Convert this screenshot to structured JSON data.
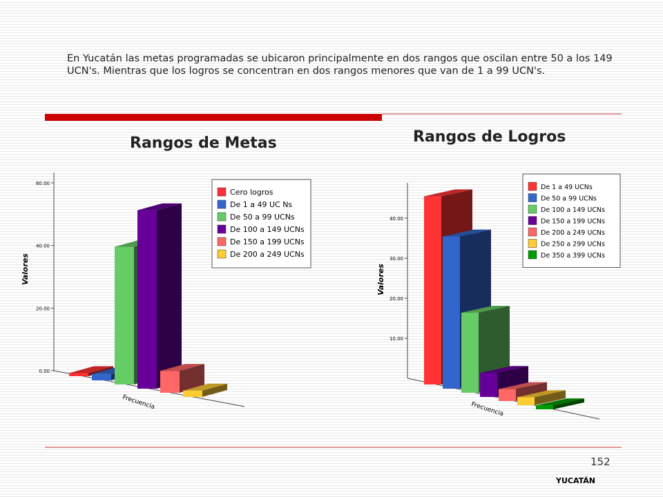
{
  "text": "En Yucatán las metas programadas se ubicaron principalmente en dos rangos que oscilan entre 50 a los 149 UCN's. Mientras que los logros se concentran en dos rangos menores que van de 1 a 99 UCN's.",
  "page_number": "152",
  "footer": "YUCATÁN",
  "chart_data": [
    {
      "type": "bar3d",
      "title": "Rangos de Metas",
      "y_label": "Valores",
      "x_label": "Frecuencia",
      "categories": [
        "Cero logros",
        "De 1 a 49 UC Ns",
        "De 50 a 99 UCNs",
        "De 100 a 149 UCNs",
        "De 150 a 199 UCNs",
        "De 200 a 249 UCNs"
      ],
      "values": [
        1,
        2,
        44,
        57,
        7,
        2
      ],
      "colors": [
        "#ff3333",
        "#3366cc",
        "#66cc66",
        "#660099",
        "#ff6666",
        "#ffcc33"
      ],
      "ylim": [
        0,
        60
      ],
      "yticks": [
        {
          "value": 0,
          "label": "0.00"
        },
        {
          "value": 20,
          "label": "20.00"
        },
        {
          "value": 40,
          "label": "40.00"
        },
        {
          "value": 60,
          "label": "60.00"
        }
      ]
    },
    {
      "type": "bar3d",
      "title": "Rangos de Logros",
      "y_label": "Valores",
      "x_label": "Frecuencia",
      "categories": [
        "De 1 a 49 UCNs",
        "De 50 a 99 UCNs",
        "De 100 a 149 UCNs",
        "De 150 a 199 UCNs",
        "De 200 a 249 UCNs",
        "De 250 a 299 UCNs",
        "De 350 a 399 UCNs"
      ],
      "values": [
        47,
        38,
        20,
        6,
        3,
        2,
        1
      ],
      "colors": [
        "#ff3333",
        "#3366cc",
        "#66cc66",
        "#660099",
        "#ff6666",
        "#ffcc33",
        "#009900"
      ],
      "ylim": [
        0,
        50
      ],
      "yticks": [
        {
          "value": 10,
          "label": "10.00"
        },
        {
          "value": 20,
          "label": "20.00"
        },
        {
          "value": 30,
          "label": "30.00"
        },
        {
          "value": 40,
          "label": "40.00"
        }
      ]
    }
  ]
}
